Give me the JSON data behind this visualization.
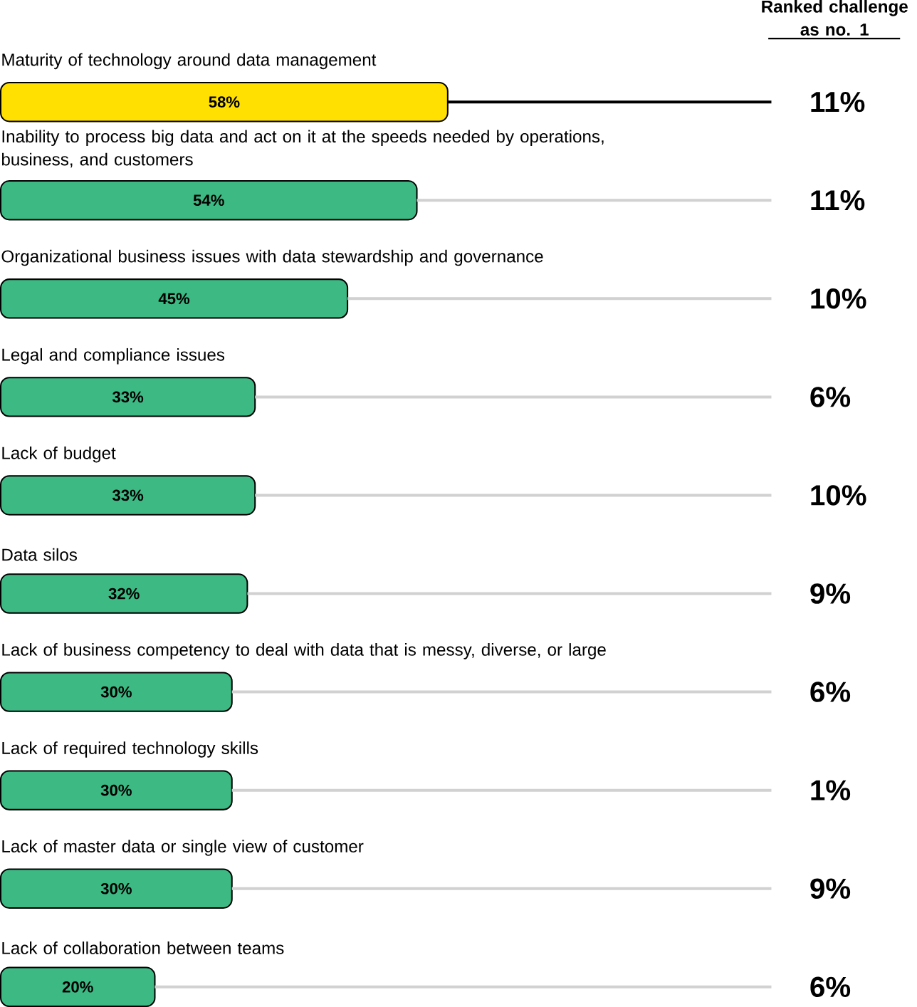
{
  "chart_data": {
    "type": "bar",
    "orientation": "horizontal",
    "stacked": true,
    "categories": [
      "Maturity of technology around data management",
      "Inability to process big data and act on it at the speeds needed by operations, business, and customers",
      "Organizational business issues with data stewardship and governance",
      "Legal and compliance issues",
      "Lack of budget",
      "Data silos",
      "Lack of business competency to deal with data that is messy, diverse, or large",
      "Lack of required technology skills",
      "Lack of master data or single view of customer",
      "Lack of collaboration between teams"
    ],
    "series": [
      {
        "values": [
          58,
          54,
          45,
          33,
          33,
          32,
          30,
          30,
          30,
          20
        ],
        "value_labels": [
          "58%",
          "54%",
          "45%",
          "33%",
          "33%",
          "32%",
          "30%",
          "30%",
          "30%",
          "20%"
        ],
        "colors": [
          "#ffe000",
          "#3dba84",
          "#3dba84",
          "#3dba84",
          "#3dba84",
          "#3dba84",
          "#3dba84",
          "#3dba84",
          "#3dba84",
          "#3dba84"
        ]
      },
      {
        "values": [
          42,
          46,
          55,
          67,
          67,
          68,
          70,
          70,
          70,
          80
        ],
        "colors": [
          "#000000",
          "#d1d1d1",
          "#d1d1d1",
          "#d1d1d1",
          "#d1d1d1",
          "#d1d1d1",
          "#d1d1d1",
          "#d1d1d1",
          "#d1d1d1",
          "#d1d1d1"
        ]
      }
    ],
    "xlim": [
      0,
      100
    ],
    "tick_labels": false,
    "annotations": [
      "Ranked challenge as no. 1",
      "11%",
      "11%",
      "10%",
      "6%",
      "10%",
      "9%",
      "6%",
      "1%",
      "9%",
      "6%"
    ]
  }
}
